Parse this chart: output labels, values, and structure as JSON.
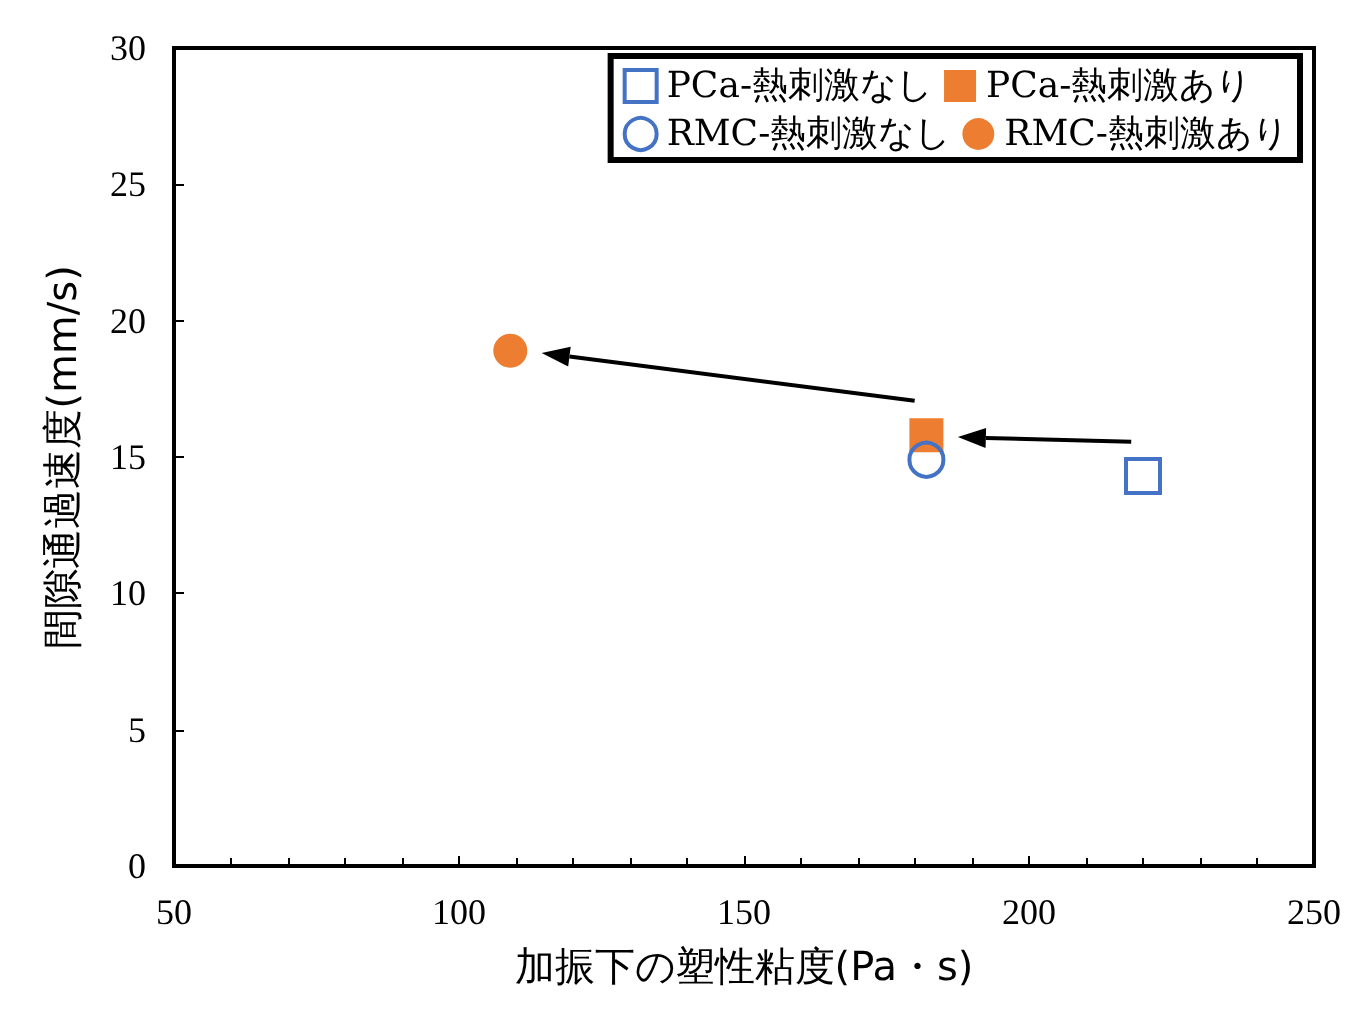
{
  "chart_data": {
    "type": "scatter",
    "xlabel": "加振下の塑性粘度(Pa・s)",
    "ylabel": "間隙通過速度(mm/s)",
    "xlim": [
      50,
      250
    ],
    "xticks": [
      50,
      100,
      150,
      200,
      250
    ],
    "ylim": [
      0,
      30
    ],
    "yticks": [
      0,
      5,
      10,
      15,
      20,
      25,
      30
    ],
    "grid": false,
    "legend": "top right",
    "series": [
      {
        "name": "PCa-熱刺激なし",
        "color": "#4472c4",
        "marker": "square-open",
        "x": [
          220
        ],
        "values": [
          14.3
        ]
      },
      {
        "name": "PCa-熱刺激あり",
        "color": "#ed7d31",
        "marker": "square",
        "x": [
          182
        ],
        "values": [
          15.8
        ]
      },
      {
        "name": "RMC-熱刺激なし",
        "color": "#4472c4",
        "marker": "circle-open",
        "x": [
          182
        ],
        "values": [
          14.9
        ]
      },
      {
        "name": "RMC-熱刺激あり",
        "color": "#ed7d31",
        "marker": "circle",
        "x": [
          109
        ],
        "values": [
          18.9
        ]
      }
    ]
  }
}
